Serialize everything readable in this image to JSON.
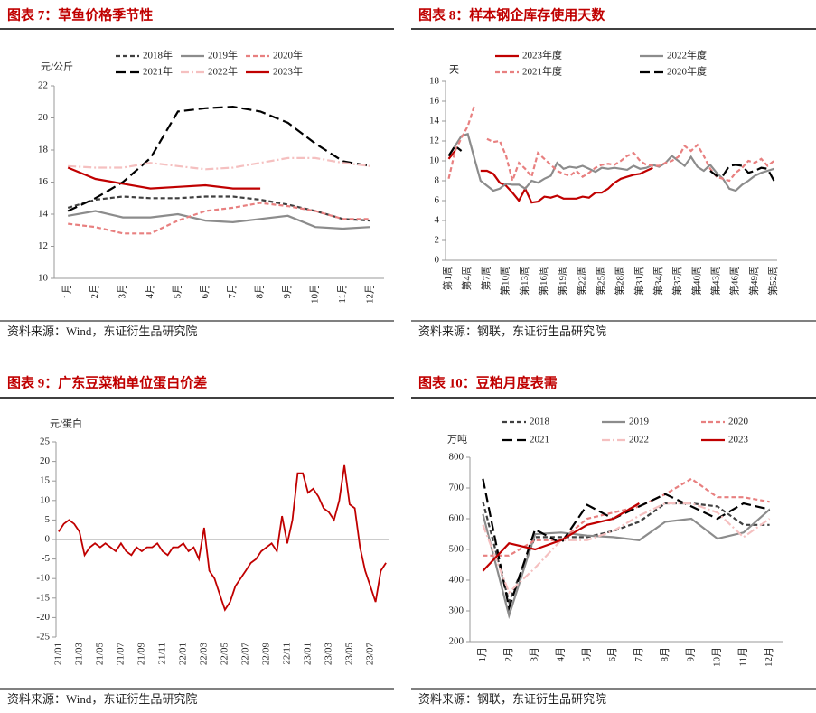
{
  "chart_data": [
    {
      "type": "line",
      "title": "图表 7：草鱼价格季节性",
      "y_label": "元/公斤",
      "source": "资料来源：Wind，东证衍生品研究院",
      "categories": [
        "1月",
        "2月",
        "3月",
        "4月",
        "5月",
        "6月",
        "7月",
        "8月",
        "9月",
        "10月",
        "11月",
        "12月"
      ],
      "ylim": [
        10,
        22
      ],
      "yticks": [
        10,
        12,
        14,
        16,
        18,
        20,
        22
      ],
      "series": [
        {
          "name": "2018年",
          "color": "#404040",
          "dash": "dashed",
          "values": [
            14.4,
            14.9,
            15.1,
            15.0,
            15.0,
            15.1,
            15.1,
            14.9,
            14.6,
            14.2,
            13.7,
            13.6
          ]
        },
        {
          "name": "2019年",
          "color": "#8c8c8c",
          "dash": "solid",
          "values": [
            13.9,
            14.2,
            13.8,
            13.8,
            14.0,
            13.6,
            13.5,
            13.7,
            13.9,
            13.2,
            13.1,
            13.2
          ]
        },
        {
          "name": "2020年",
          "color": "#e88080",
          "dash": "dashed",
          "values": [
            13.4,
            13.2,
            12.8,
            12.8,
            13.6,
            14.2,
            14.4,
            14.7,
            14.5,
            14.2,
            13.7,
            13.7
          ]
        },
        {
          "name": "2021年",
          "color": "#000000",
          "dash": "longdash",
          "values": [
            14.2,
            15.0,
            16.0,
            17.5,
            20.4,
            20.6,
            20.7,
            20.4,
            19.7,
            18.4,
            17.3,
            17.0
          ]
        },
        {
          "name": "2022年",
          "color": "#f5c0c0",
          "dash": "dashdot",
          "values": [
            17.0,
            16.9,
            16.9,
            17.2,
            17.0,
            16.8,
            16.9,
            17.2,
            17.5,
            17.5,
            17.2,
            17.0
          ]
        },
        {
          "name": "2023年",
          "color": "#c00000",
          "dash": "solid",
          "values": [
            16.9,
            16.2,
            15.9,
            15.6,
            15.7,
            15.8,
            15.6,
            15.6,
            null,
            null,
            null,
            null
          ]
        }
      ]
    },
    {
      "type": "line",
      "title": "图表 8：样本钢企库存使用天数",
      "y_label": "天",
      "source": "资料来源：钢联，东证衍生品研究院",
      "categories": [
        "第1周",
        null,
        null,
        "第4周",
        null,
        null,
        "第7周",
        null,
        null,
        "第10周",
        null,
        null,
        "第13周",
        null,
        null,
        "第16周",
        null,
        null,
        "第19周",
        null,
        null,
        "第22周",
        null,
        null,
        "第25周",
        null,
        null,
        "第28周",
        null,
        null,
        "第31周",
        null,
        null,
        "第34周",
        null,
        null,
        "第37周",
        null,
        null,
        "第40周",
        null,
        null,
        "第43周",
        null,
        null,
        "第46周",
        null,
        null,
        "第49周",
        null,
        null,
        "第52周"
      ],
      "ylim": [
        0,
        18
      ],
      "yticks": [
        0,
        2,
        4,
        6,
        8,
        10,
        12,
        14,
        16,
        18
      ],
      "series": [
        {
          "name": "2023年度",
          "color": "#c00000",
          "dash": "solid",
          "values": [
            10.2,
            11.0,
            null,
            null,
            null,
            9.0,
            9.0,
            8.7,
            7.8,
            7.5,
            6.8,
            6.0,
            7.2,
            5.8,
            5.9,
            6.4,
            6.3,
            6.5,
            6.2,
            6.2,
            6.2,
            6.4,
            6.3,
            6.8,
            6.8,
            7.2,
            7.8,
            8.2,
            8.4,
            8.6,
            8.7,
            9.0,
            9.3,
            null,
            null,
            null,
            null,
            null,
            null,
            null,
            null,
            null,
            null,
            null,
            null,
            null,
            null,
            null,
            null,
            null,
            null,
            null
          ]
        },
        {
          "name": "2022年度",
          "color": "#8c8c8c",
          "dash": "solid",
          "values": [
            10.5,
            11.5,
            12.5,
            12.7,
            10.3,
            8.0,
            7.5,
            7.0,
            7.2,
            7.7,
            7.6,
            7.6,
            7.2,
            8.0,
            7.8,
            8.2,
            8.5,
            9.8,
            9.2,
            9.4,
            9.3,
            9.5,
            9.2,
            8.9,
            9.3,
            9.2,
            9.3,
            9.2,
            9.1,
            9.5,
            9.2,
            9.3,
            9.6,
            9.4,
            9.8,
            10.5,
            10.0,
            9.5,
            10.4,
            9.4,
            9.0,
            9.6,
            8.8,
            8.2,
            7.2,
            7.0,
            7.6,
            8.0,
            8.5,
            8.8,
            9.0,
            9.2
          ]
        },
        {
          "name": "2021年度",
          "color": "#e88080",
          "dash": "dashed",
          "values": [
            8.2,
            11.0,
            12.3,
            13.5,
            15.5,
            null,
            12.2,
            11.9,
            12.0,
            10.5,
            8.0,
            9.8,
            9.2,
            8.4,
            10.8,
            10.2,
            9.6,
            9.0,
            8.7,
            8.5,
            9.0,
            8.4,
            8.8,
            9.3,
            9.6,
            9.7,
            9.6,
            10.0,
            10.5,
            10.8,
            10.0,
            9.6,
            9.5,
            9.5,
            9.8,
            10.0,
            10.4,
            11.5,
            11.0,
            11.6,
            10.5,
            9.2,
            8.4,
            8.2,
            8.0,
            8.8,
            9.3,
            10.0,
            9.8,
            10.2,
            9.5,
            10.0
          ]
        },
        {
          "name": "2020年度",
          "color": "#000000",
          "dash": "longdash",
          "values": [
            10.5,
            11.5,
            11.0,
            null,
            null,
            null,
            null,
            null,
            null,
            null,
            null,
            null,
            null,
            null,
            null,
            null,
            null,
            null,
            null,
            null,
            null,
            null,
            null,
            null,
            null,
            null,
            null,
            null,
            null,
            null,
            null,
            null,
            null,
            null,
            null,
            null,
            null,
            null,
            null,
            null,
            null,
            9.0,
            8.5,
            8.5,
            9.5,
            9.6,
            9.5,
            8.8,
            9.0,
            9.3,
            9.2,
            8.0
          ]
        }
      ]
    },
    {
      "type": "line",
      "title": "图表 9：广东豆菜粕单位蛋白价差",
      "y_label": "元/蛋白",
      "source": "资料来源：Wind，东证衍生品研究院",
      "categories": [
        "21/01",
        null,
        null,
        null,
        "21/03",
        null,
        null,
        null,
        "21/05",
        null,
        null,
        null,
        "21/07",
        null,
        null,
        null,
        "21/09",
        null,
        null,
        null,
        "21/11",
        null,
        null,
        null,
        "22/01",
        null,
        null,
        null,
        "22/03",
        null,
        null,
        null,
        "22/05",
        null,
        null,
        null,
        "22/07",
        null,
        null,
        null,
        "22/09",
        null,
        null,
        null,
        "22/11",
        null,
        null,
        null,
        "23/01",
        null,
        null,
        null,
        "23/03",
        null,
        null,
        null,
        "23/05",
        null,
        null,
        null,
        "23/07",
        null,
        null,
        null
      ],
      "ylim": [
        -25,
        25
      ],
      "yticks": [
        -25,
        -20,
        -15,
        -10,
        -5,
        0,
        5,
        10,
        15,
        20,
        25
      ],
      "color": "#c00000",
      "values": [
        2,
        4,
        5,
        4,
        2,
        -4,
        -2,
        -1,
        -2,
        -1,
        -2,
        -3,
        -1,
        -3,
        -4,
        -2,
        -3,
        -2,
        -2,
        -1,
        -3,
        -4,
        -2,
        -2,
        -1,
        -3,
        -2,
        -5,
        3,
        -8,
        -10,
        -14,
        -18,
        -16,
        -12,
        -10,
        -8,
        -6,
        -5,
        -3,
        -2,
        -1,
        -3,
        6,
        -1,
        5,
        17,
        17,
        12,
        13,
        11,
        8,
        7,
        5,
        10,
        19,
        9,
        8,
        -2,
        -8,
        -12,
        -16,
        -8,
        -6
      ]
    },
    {
      "type": "line",
      "title": "图表 10：豆粕月度表需",
      "y_label": "万吨",
      "source": "资料来源：钢联，东证衍生品研究院",
      "categories": [
        "1月",
        "2月",
        "3月",
        "4月",
        "5月",
        "6月",
        "7月",
        "8月",
        "9月",
        "10月",
        "11月",
        "12月"
      ],
      "ylim": [
        200,
        800
      ],
      "yticks": [
        200,
        300,
        400,
        500,
        600,
        700,
        800
      ],
      "series": [
        {
          "name": "2018",
          "color": "#404040",
          "dash": "dashed",
          "values": [
            655,
            330,
            540,
            540,
            540,
            560,
            590,
            650,
            650,
            640,
            580,
            580
          ]
        },
        {
          "name": "2019",
          "color": "#8c8c8c",
          "dash": "solid",
          "values": [
            615,
            285,
            550,
            555,
            545,
            540,
            530,
            590,
            600,
            535,
            555,
            630
          ]
        },
        {
          "name": "2020",
          "color": "#e88080",
          "dash": "dashed",
          "values": [
            480,
            480,
            530,
            530,
            600,
            620,
            640,
            680,
            730,
            670,
            670,
            655
          ]
        },
        {
          "name": "2021",
          "color": "#000000",
          "dash": "longdash",
          "values": [
            730,
            310,
            565,
            520,
            645,
            600,
            640,
            680,
            640,
            600,
            650,
            630
          ]
        },
        {
          "name": "2022",
          "color": "#f5c0c0",
          "dash": "dashdot",
          "values": [
            580,
            360,
            440,
            530,
            530,
            560,
            610,
            650,
            650,
            620,
            540,
            600
          ]
        },
        {
          "name": "2023",
          "color": "#c00000",
          "dash": "solid",
          "values": [
            430,
            520,
            500,
            530,
            580,
            600,
            650,
            null,
            null,
            null,
            null,
            null
          ]
        }
      ]
    }
  ]
}
